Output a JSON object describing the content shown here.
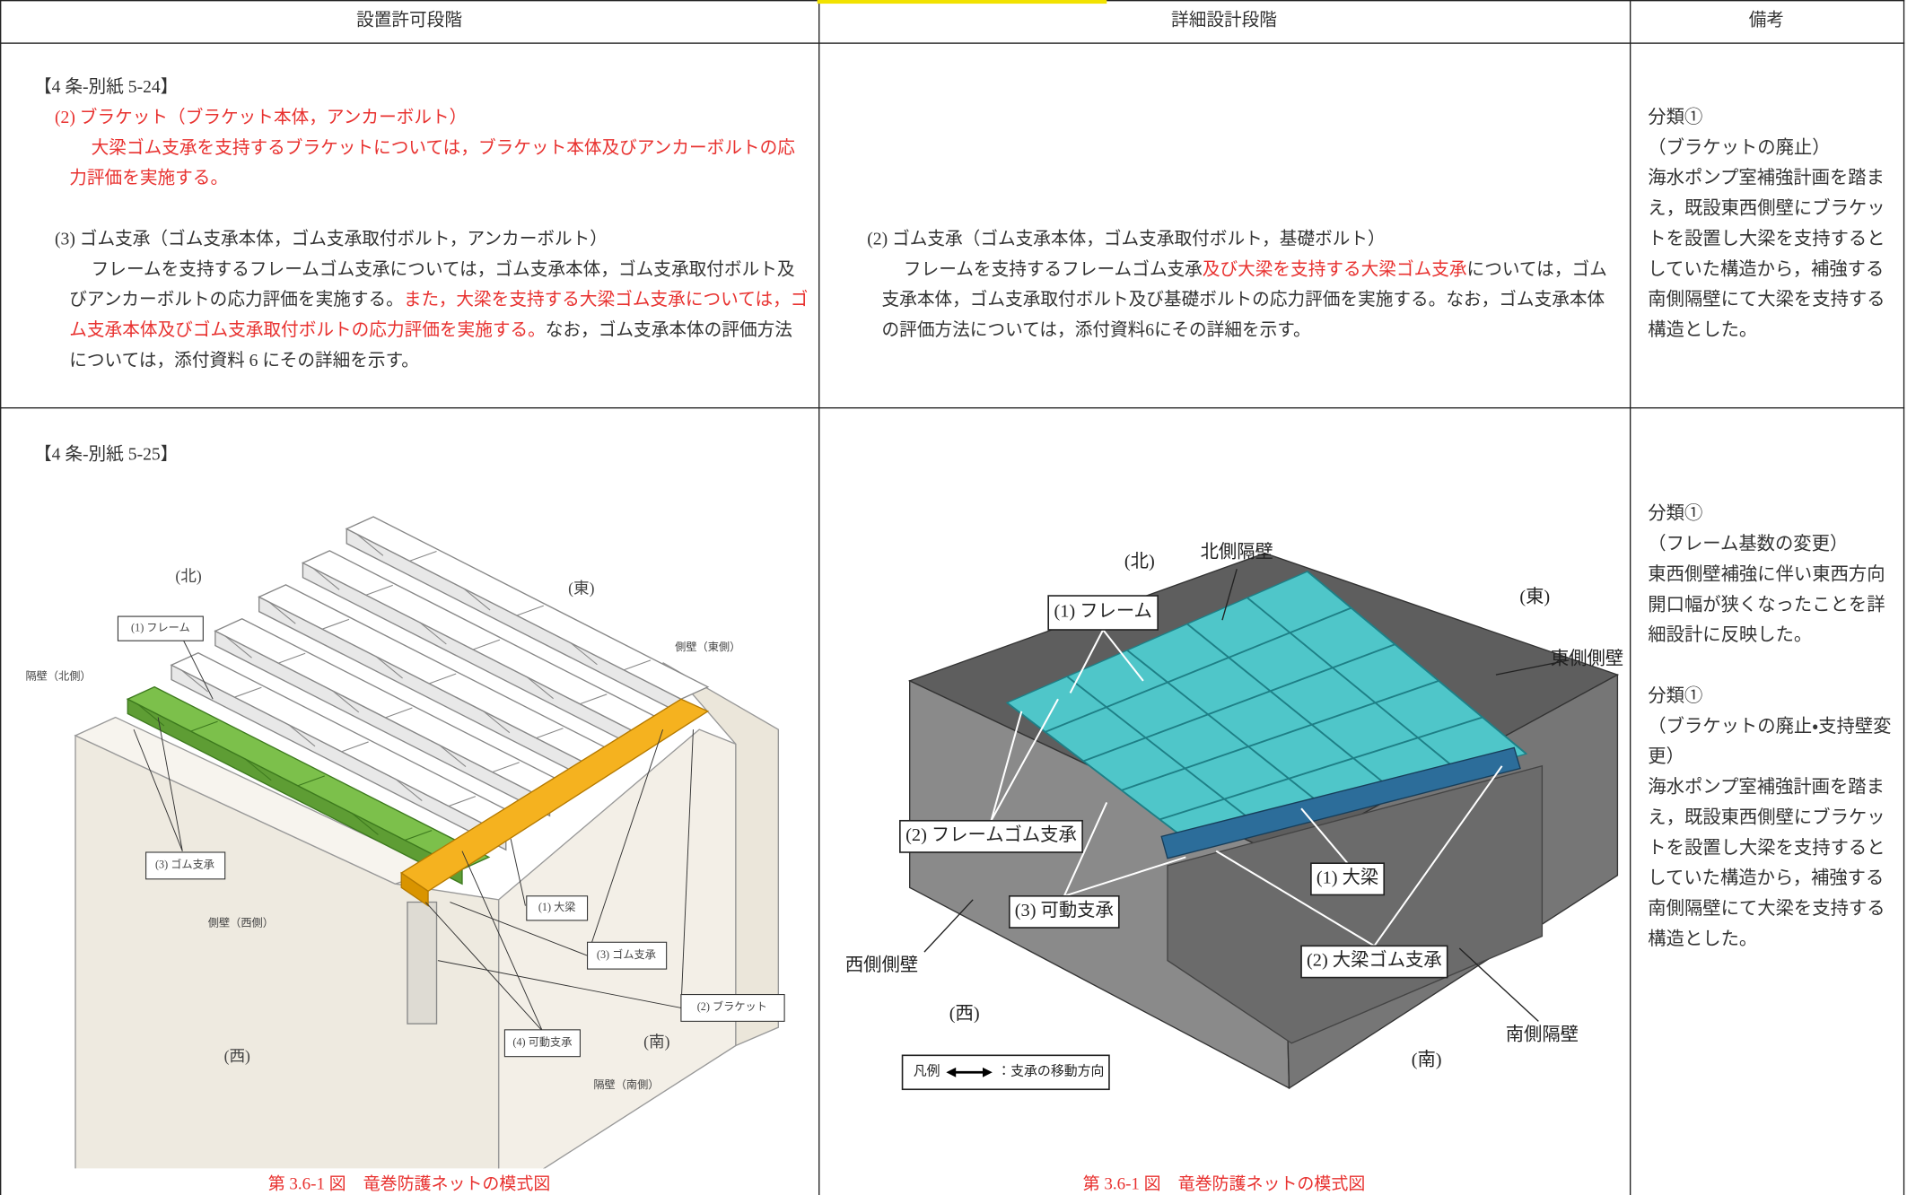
{
  "header": {
    "columns": [
      "設置許可段階",
      "詳細設計段階",
      "備考"
    ]
  },
  "rows": [
    {
      "permit": {
        "ref": "【4 条-別紙 5-24】",
        "sections": [
          {
            "heading": {
              "text": "(2)  ブラケット（ブラケット本体，アンカーボルト）",
              "color": "#e8312f"
            },
            "body": [
              {
                "text": "大梁ゴム支承を支持するブラケットについては，ブラケット本体及びアンカーボルトの応力評価を実施する。",
                "color": "#e8312f"
              }
            ]
          },
          {
            "heading": {
              "text": "(3)  ゴム支承（ゴム支承本体，ゴム支承取付ボルト，アンカーボルト）",
              "color": "#333333"
            },
            "body": [
              {
                "text": "フレームを支持するフレームゴム支承については，ゴム支承本体，ゴム支承取付ボルト及びアンカーボルトの応力評価を実施する。",
                "color": "#333333"
              },
              {
                "text": "また，大梁を支持する大梁ゴム支承については，ゴム支承本体及びゴム支承取付ボルトの応力評価を実施する。",
                "color": "#e8312f"
              },
              {
                "text": "なお，ゴム支承本体の評価方法については，添付資料 6 にその詳細を示す。",
                "color": "#333333"
              }
            ]
          }
        ]
      },
      "detail": {
        "sections": [
          {
            "heading": {
              "text": "(2)  ゴム支承（ゴム支承本体，ゴム支承取付ボルト，基礎ボルト）",
              "color": "#333333"
            },
            "body": [
              {
                "text": "フレームを支持するフレームゴム支承",
                "color": "#333333"
              },
              {
                "text": "及び大梁を支持する大梁ゴム支承",
                "color": "#e8312f"
              },
              {
                "text": "については，ゴム支承本体，ゴム支承取付ボルト及び基礎ボルトの応力評価を実施する。なお，ゴム支承本体の評価方法については，添付資料6にその詳細を示す。",
                "color": "#333333"
              }
            ]
          }
        ]
      },
      "remarks": [
        {
          "category": "分類①",
          "topic": "（ブラケットの廃止）",
          "text": "海水ポンプ室補強計画を踏まえ，既設東西側壁にブラケットを設置し大梁を支持するとしていた構造から，補強する南側隔壁にて大梁を支持する構造とした。"
        }
      ]
    },
    {
      "permit": {
        "ref": "【4 条-別紙 5-25】",
        "figure": {
          "labels": [
            "(北)",
            "(東)",
            "(1) フレーム",
            "隔壁（北側）",
            "側壁（東側）",
            "(3) ゴム支承",
            "側壁（西側）",
            "(1) 大梁",
            "(3) ゴム支承",
            "(2) ブラケット",
            "(4) 可動支承",
            "(南)",
            "(西)",
            "隔壁（南側）"
          ],
          "caption": "第 3.6-1 図　竜巻防護ネットの模式図"
        }
      },
      "detail": {
        "figure": {
          "labels": [
            "(北)",
            "北側隔壁",
            "(東)",
            "(1) フレーム",
            "東側側壁",
            "(2) フレームゴム支承",
            "(3) 可動支承",
            "(1) 大梁",
            "西側側壁",
            "(2) 大梁ゴム支承",
            "(西)",
            "南側隔壁",
            "(南)"
          ],
          "legend": {
            "title": "凡例",
            "text": "：支承の移動方向"
          },
          "caption": "第 3.6-1 図　竜巻防護ネットの模式図"
        }
      },
      "remarks": [
        {
          "category": "分類①",
          "topic": "（フレーム基数の変更）",
          "text": "東西側壁補強に伴い東西方向開口幅が狭くなったことを詳細設計に反映した。"
        },
        {
          "category": "分類①",
          "topic": "（ブラケットの廃止・支持壁変更）",
          "text": "海水ポンプ室補強計画を踏まえ，既設東西側壁にブラケットを設置し大梁を支持するとしていた構造から，補強する南側隔壁にて大梁を支持する構造とした。"
        }
      ]
    }
  ]
}
